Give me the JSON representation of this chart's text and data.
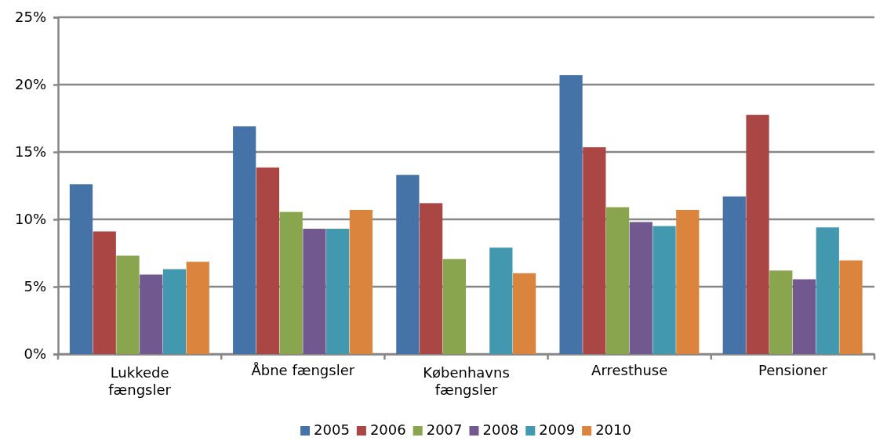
{
  "chart_data": {
    "type": "bar",
    "categories": [
      "Lukkede fængsler",
      "Åbne fængsler",
      "Københavns fængsler",
      "Arresthuse",
      "Pensioner"
    ],
    "series": [
      {
        "name": "2005",
        "color": "#4572a7",
        "values": [
          12.6,
          16.9,
          13.3,
          20.7,
          11.7
        ]
      },
      {
        "name": "2006",
        "color": "#aa4643",
        "values": [
          9.1,
          13.85,
          11.2,
          15.35,
          17.75
        ]
      },
      {
        "name": "2007",
        "color": "#89a54e",
        "values": [
          7.3,
          10.55,
          7.05,
          10.9,
          6.2
        ]
      },
      {
        "name": "2008",
        "color": "#71588f",
        "values": [
          5.9,
          9.3,
          null,
          9.8,
          5.55
        ]
      },
      {
        "name": "2009",
        "color": "#4198af",
        "values": [
          6.3,
          9.3,
          7.9,
          9.5,
          9.4
        ]
      },
      {
        "name": "2010",
        "color": "#db843d",
        "values": [
          6.85,
          10.7,
          6.0,
          10.7,
          6.95
        ]
      }
    ],
    "ylim": [
      0,
      25
    ],
    "yticks": [
      {
        "value": 0,
        "label": "0%"
      },
      {
        "value": 5,
        "label": "5%"
      },
      {
        "value": 10,
        "label": "10%"
      },
      {
        "value": 15,
        "label": "15%"
      },
      {
        "value": 20,
        "label": "20%"
      },
      {
        "value": 25,
        "label": "25%"
      }
    ],
    "grid": "y",
    "legend": "bottom"
  }
}
